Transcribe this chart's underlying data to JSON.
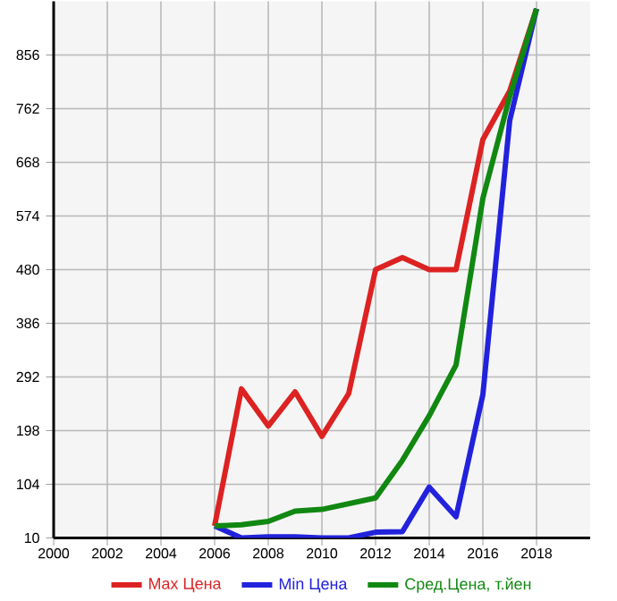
{
  "chart_data": {
    "type": "line",
    "x": [
      2006,
      2007,
      2008,
      2009,
      2010,
      2011,
      2012,
      2013,
      2014,
      2015,
      2016,
      2017,
      2018
    ],
    "series": [
      {
        "name": "Max Цена",
        "color": "#dd2222",
        "values": [
          31,
          271,
          206,
          266,
          188,
          263,
          480,
          501,
          480,
          480,
          708,
          793,
          937
        ]
      },
      {
        "name": "Min Цена",
        "color": "#2222dd",
        "values": [
          31,
          10,
          12,
          12,
          10,
          10,
          20,
          21,
          99,
          47,
          261,
          741,
          937
        ]
      },
      {
        "name": "Сред.Цена, т.йен",
        "color": "#118811",
        "values": [
          31,
          33,
          39,
          57,
          60,
          70,
          80,
          146,
          224,
          313,
          605,
          783,
          937
        ]
      }
    ],
    "xlim": [
      2000,
      2020
    ],
    "ylim": [
      10,
      950
    ],
    "xticks": [
      2000,
      2002,
      2004,
      2006,
      2008,
      2010,
      2012,
      2014,
      2016,
      2018
    ],
    "yticks": [
      10,
      104,
      198,
      292,
      386,
      480,
      574,
      668,
      762,
      856
    ],
    "grid": true,
    "legend": "bottom",
    "marker": "none",
    "line_style": "solid"
  }
}
